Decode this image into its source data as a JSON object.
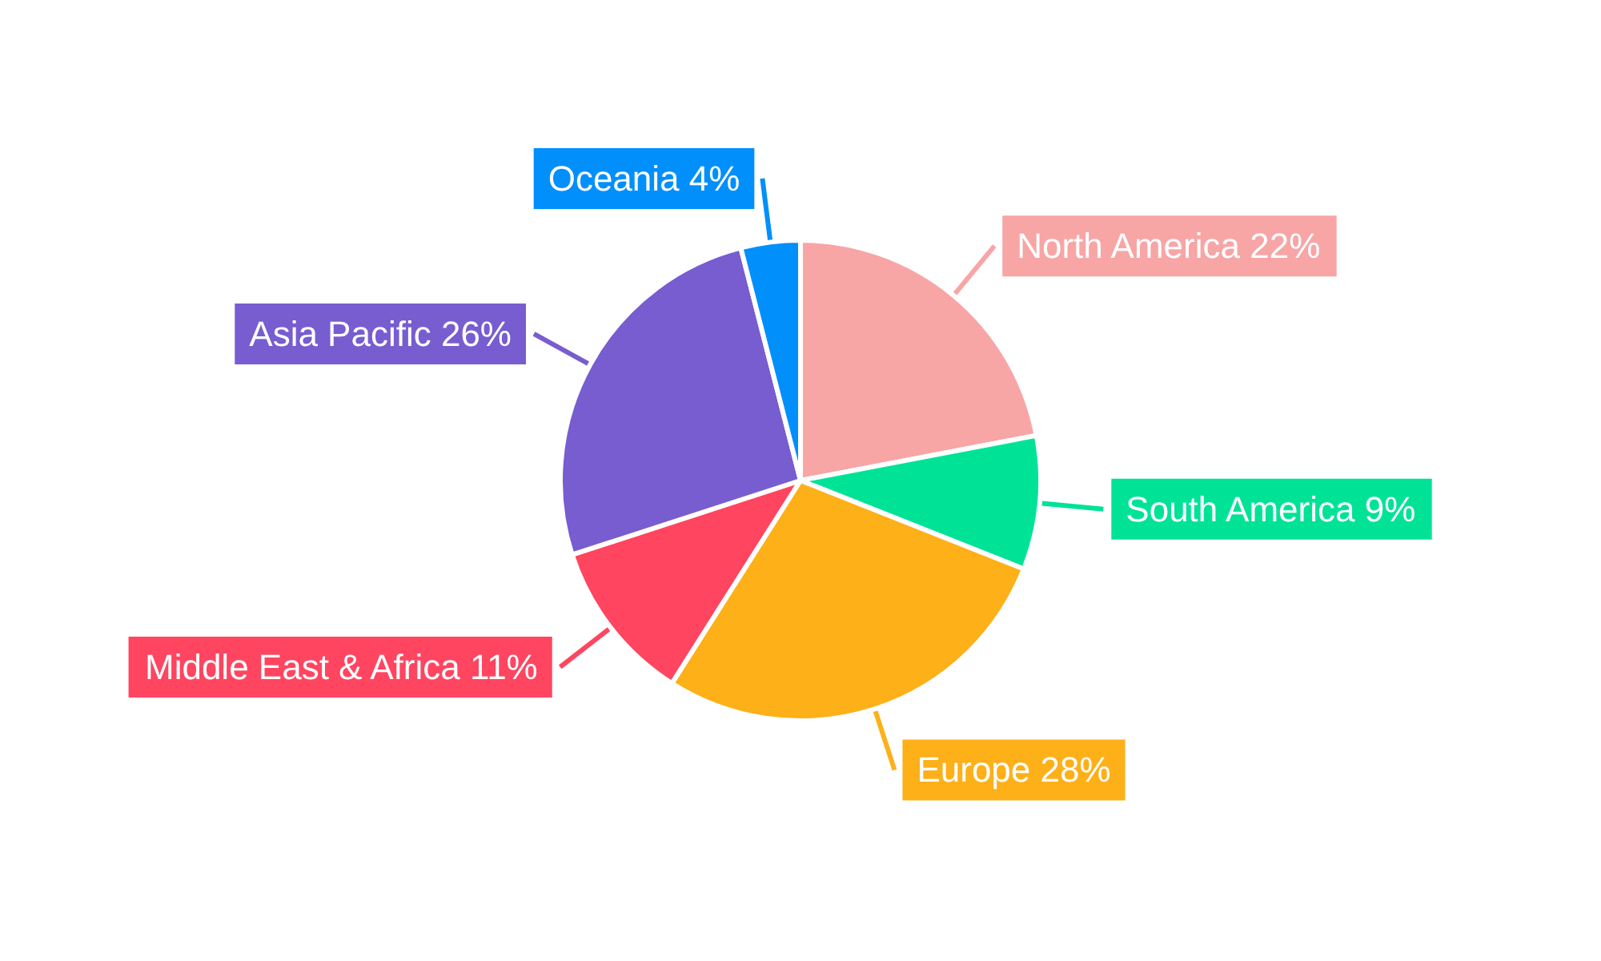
{
  "chart_data": {
    "type": "pie",
    "categories": [
      "North America",
      "South America",
      "Europe",
      "Middle East & Africa",
      "Asia Pacific",
      "Oceania"
    ],
    "values": [
      22,
      9,
      28,
      11,
      26,
      4
    ],
    "value_labels": [
      "22%",
      "9%",
      "28%",
      "11%",
      "26%",
      "4%"
    ],
    "colors": [
      "#f8a5a6",
      "#00e396",
      "#feb019",
      "#ff4560",
      "#775dd0",
      "#008ffb"
    ],
    "legend": false
  }
}
